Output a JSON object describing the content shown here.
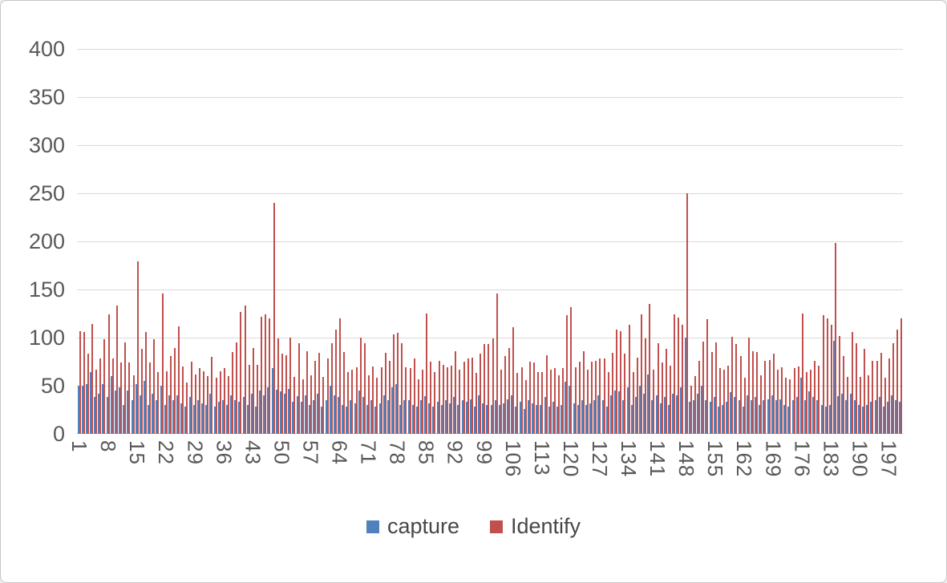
{
  "chart_data": {
    "type": "bar",
    "title": "",
    "xlabel": "",
    "ylabel": "",
    "ylim": [
      0,
      400
    ],
    "y_ticks": [
      0,
      50,
      100,
      150,
      200,
      250,
      300,
      350,
      400
    ],
    "x_tick_labels": [
      "1",
      "8",
      "15",
      "22",
      "29",
      "36",
      "43",
      "50",
      "57",
      "64",
      "71",
      "78",
      "85",
      "92",
      "99",
      "106",
      "113",
      "120",
      "127",
      "134",
      "141",
      "148",
      "155",
      "162",
      "169",
      "176",
      "183",
      "190",
      "197"
    ],
    "categories_start": 1,
    "categories_count": 200,
    "gridlines": "horizontal every 50",
    "legend_position": "bottom",
    "series": [
      {
        "name": "capture",
        "color": "#4F81BD",
        "values": [
          50,
          50,
          52,
          64,
          38,
          42,
          52,
          38,
          60,
          45,
          48,
          30,
          45,
          35,
          52,
          40,
          55,
          30,
          42,
          35,
          50,
          30,
          40,
          35,
          40,
          32,
          28,
          38,
          30,
          35,
          32,
          30,
          42,
          28,
          33,
          35,
          30,
          40,
          35,
          33,
          38,
          30,
          42,
          28,
          45,
          40,
          48,
          68,
          46,
          44,
          42,
          47,
          33,
          39,
          33,
          40,
          30,
          35,
          42,
          28,
          35,
          50,
          40,
          38,
          30,
          28,
          35,
          32,
          45,
          38,
          30,
          35,
          28,
          32,
          40,
          35,
          48,
          52,
          30,
          35,
          35,
          30,
          28,
          35,
          39,
          32,
          28,
          33,
          30,
          35,
          32,
          38,
          30,
          35,
          33,
          36,
          28,
          40,
          32,
          30,
          30,
          35,
          30,
          32,
          36,
          40,
          28,
          33,
          26,
          35,
          32,
          30,
          30,
          38,
          28,
          33,
          28,
          30,
          54,
          50,
          32,
          30,
          35,
          30,
          32,
          35,
          40,
          35,
          28,
          40,
          45,
          44,
          35,
          48,
          30,
          38,
          50,
          42,
          62,
          35,
          40,
          32,
          38,
          30,
          42,
          40,
          48,
          100,
          33,
          35,
          42,
          50,
          35,
          33,
          38,
          28,
          30,
          33,
          43,
          38,
          35,
          28,
          40,
          35,
          38,
          30,
          35,
          36,
          40,
          35,
          36,
          30,
          28,
          35,
          38,
          58,
          35,
          44,
          38,
          35,
          30,
          28,
          30,
          97,
          39,
          42,
          35,
          42,
          35,
          30,
          28,
          30,
          33,
          35,
          38,
          28,
          33,
          40,
          35,
          33
        ]
      },
      {
        "name": "Identify",
        "color": "#C0504D",
        "values": [
          107,
          106,
          83,
          114,
          67,
          78,
          98,
          124,
          78,
          133,
          74,
          95,
          74,
          61,
          179,
          88,
          106,
          74,
          98,
          64,
          146,
          65,
          81,
          89,
          112,
          70,
          53,
          75,
          62,
          68,
          65,
          60,
          80,
          58,
          65,
          68,
          60,
          85,
          95,
          127,
          133,
          72,
          89,
          72,
          122,
          124,
          120,
          240,
          99,
          83,
          82,
          100,
          59,
          94,
          57,
          86,
          61,
          76,
          84,
          59,
          78,
          94,
          108,
          120,
          85,
          64,
          67,
          69,
          100,
          94,
          61,
          70,
          58,
          69,
          84,
          76,
          103,
          105,
          94,
          69,
          68,
          78,
          57,
          67,
          125,
          75,
          64,
          76,
          72,
          69,
          71,
          86,
          67,
          75,
          78,
          79,
          63,
          83,
          93,
          93,
          99,
          146,
          67,
          81,
          89,
          111,
          63,
          69,
          56,
          75,
          74,
          64,
          64,
          82,
          67,
          68,
          61,
          68,
          123,
          132,
          69,
          75,
          86,
          67,
          75,
          76,
          78,
          78,
          64,
          84,
          108,
          107,
          83,
          113,
          64,
          79,
          124,
          99,
          135,
          67,
          94,
          74,
          88,
          71,
          124,
          121,
          113,
          250,
          50,
          60,
          76,
          96,
          119,
          85,
          95,
          68,
          67,
          71,
          101,
          93,
          81,
          58,
          100,
          86,
          85,
          61,
          76,
          77,
          83,
          67,
          69,
          58,
          57,
          68,
          70,
          125,
          64,
          67,
          76,
          71,
          123,
          120,
          113,
          198,
          102,
          81,
          59,
          106,
          94,
          59,
          88,
          61,
          76,
          76,
          84,
          58,
          78,
          94,
          108,
          120
        ]
      }
    ]
  },
  "legend": {
    "capture_label": "capture",
    "identify_label": "Identify"
  },
  "colors": {
    "capture": "#4F81BD",
    "identify": "#C0504D",
    "gridline": "#d9d9d9",
    "axis_text": "#595959",
    "background": "#ffffff"
  }
}
